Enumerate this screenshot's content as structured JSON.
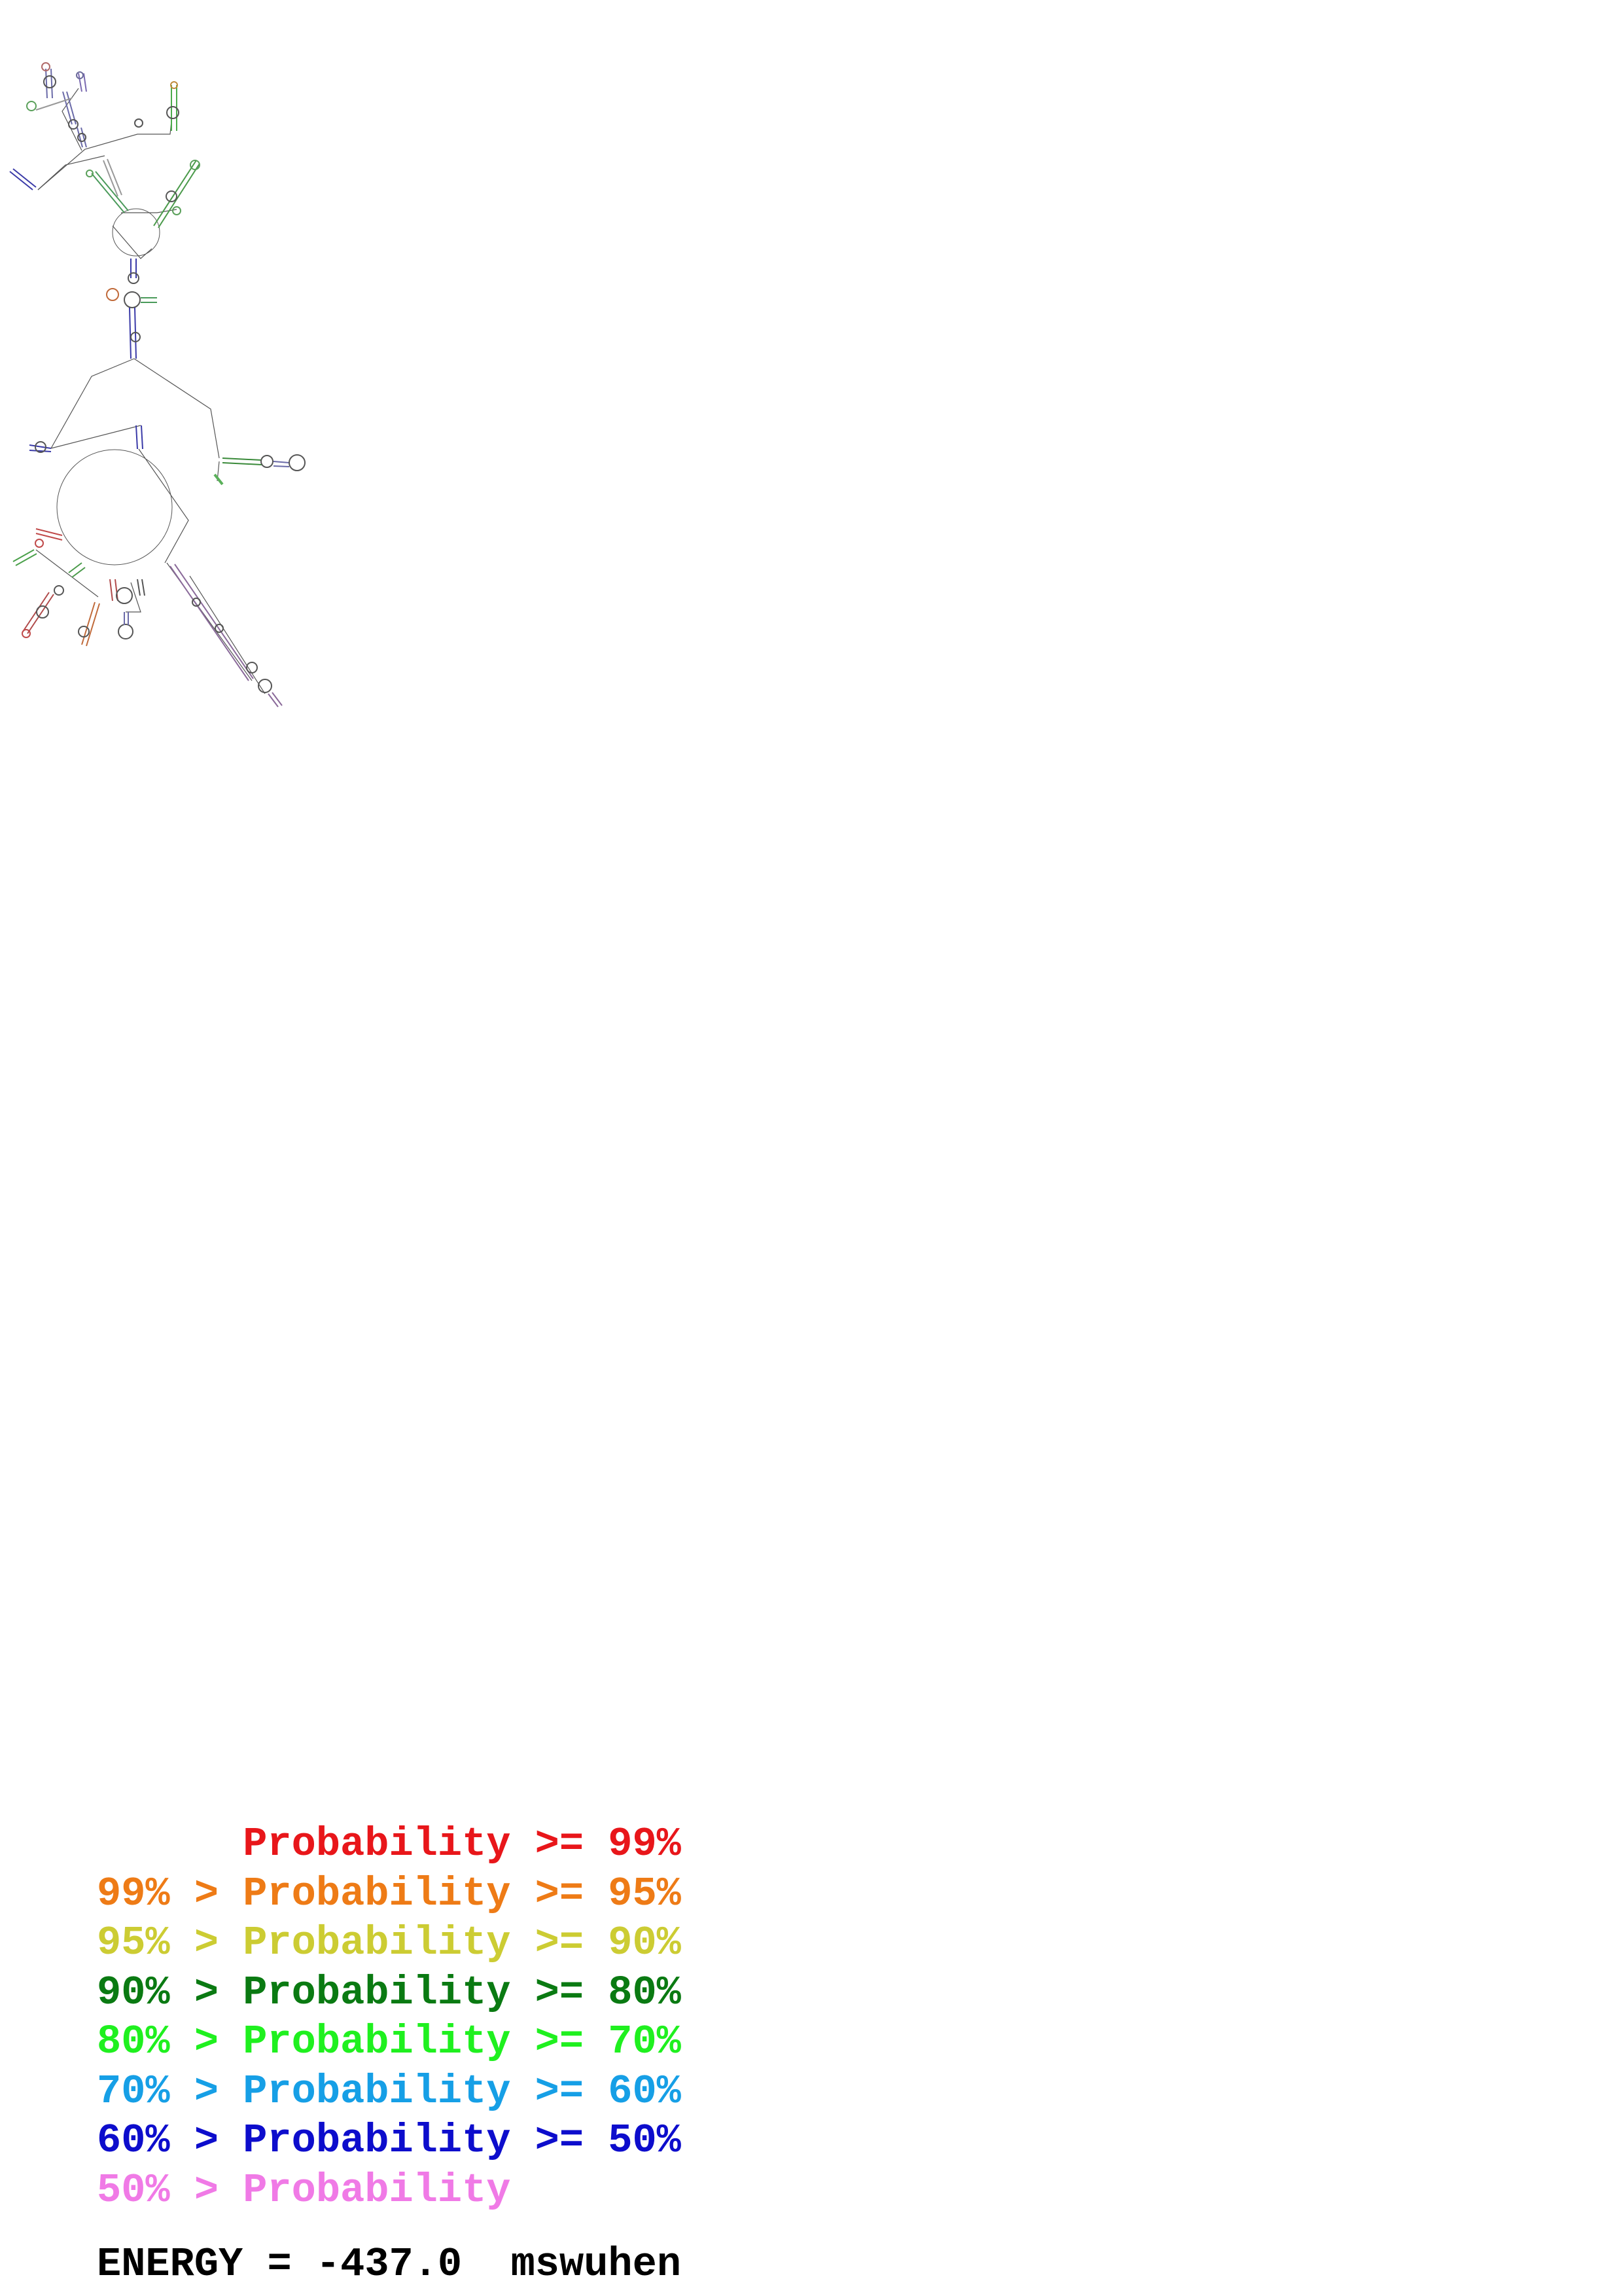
{
  "legend": {
    "rows": [
      {
        "prefix": "",
        "gt": "",
        "label": "Probability",
        "cmp": ">=",
        "threshold": "99%",
        "color": "#e8161a"
      },
      {
        "prefix": "99%",
        "gt": ">",
        "label": "Probability",
        "cmp": ">=",
        "threshold": "95%",
        "color": "#ee7b16"
      },
      {
        "prefix": "95%",
        "gt": ">",
        "label": "Probability",
        "cmp": ">=",
        "threshold": "90%",
        "color": "#cccc33"
      },
      {
        "prefix": "90%",
        "gt": ">",
        "label": "Probability",
        "cmp": ">=",
        "threshold": "80%",
        "color": "#0a7a12"
      },
      {
        "prefix": "80%",
        "gt": ">",
        "label": "Probability",
        "cmp": ">=",
        "threshold": "70%",
        "color": "#1ff01f"
      },
      {
        "prefix": "70%",
        "gt": ">",
        "label": "Probability",
        "cmp": ">=",
        "threshold": "60%",
        "color": "#169fe6"
      },
      {
        "prefix": "60%",
        "gt": ">",
        "label": "Probability",
        "cmp": ">=",
        "threshold": "50%",
        "color": "#0d0dcc"
      },
      {
        "prefix": "50%",
        "gt": ">",
        "label": "Probability",
        "cmp": "",
        "threshold": "",
        "color": "#f07ae6"
      }
    ]
  },
  "energy": {
    "label": "ENERGY",
    "equals": "=",
    "value": "-437.0",
    "name": "mswuhen"
  },
  "diagram": {
    "line_color": "#555555"
  }
}
